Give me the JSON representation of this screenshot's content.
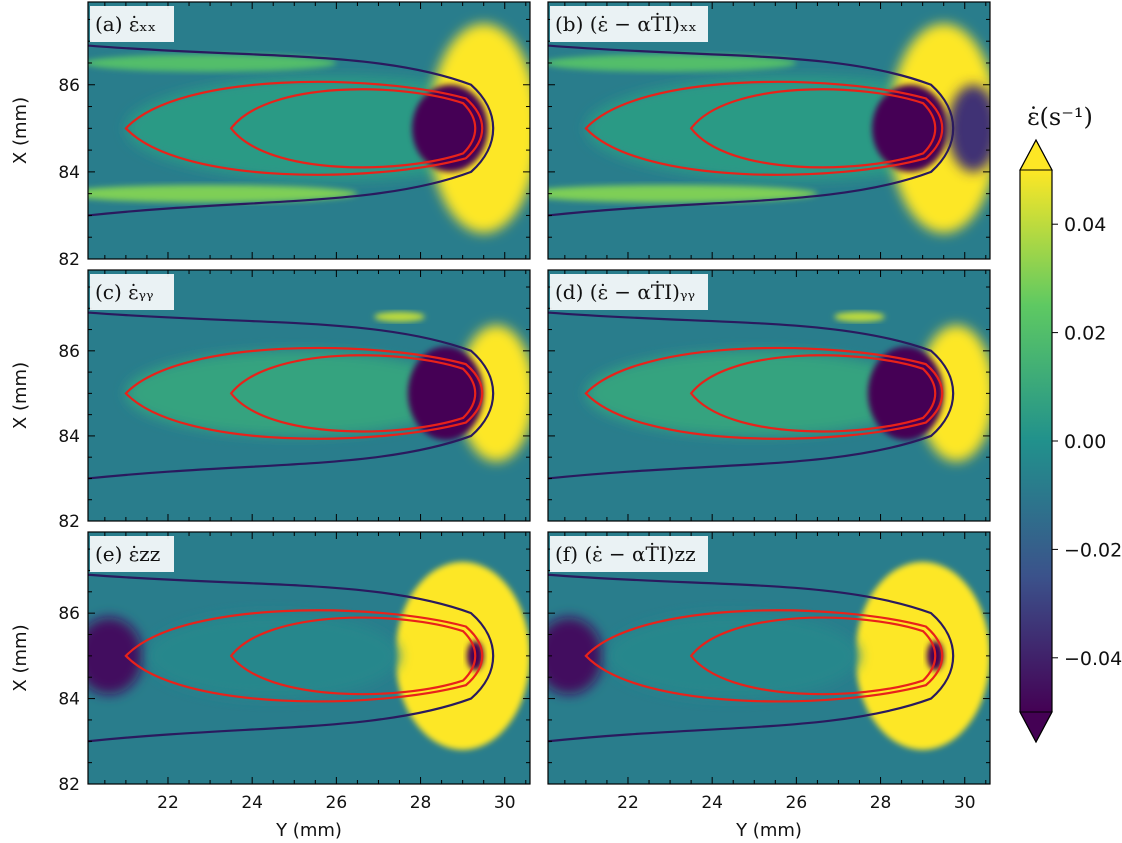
{
  "chart_data": {
    "type": "heatmap",
    "xlabel": "Y (mm)",
    "ylabel": "X (mm)",
    "xlim": [
      20.1,
      30.6
    ],
    "ylim": [
      82,
      87.9
    ],
    "x_ticks": [
      "22",
      "24",
      "26",
      "28",
      "30"
    ],
    "y_ticks": [
      "82",
      "84",
      "86"
    ],
    "colorbar": {
      "label": "ε̇(s⁻¹)",
      "range": [
        -0.05,
        0.05
      ],
      "ticks": [
        "0.04",
        "0.02",
        "0.00",
        "−0.02",
        "−0.04"
      ],
      "tick_values": [
        0.04,
        0.02,
        0.0,
        -0.02,
        -0.04
      ],
      "colormap": [
        "#440154",
        "#3b528b",
        "#21918c",
        "#5ec962",
        "#fde725"
      ],
      "extend": "both"
    },
    "panels": [
      {
        "label": "(a) ε̇ₓₓ",
        "component": "xx",
        "projected": false
      },
      {
        "label": "(b) (ε̇ − αṪI)ₓₓ",
        "component": "xx",
        "projected": true
      },
      {
        "label": "(c) ε̇ᵧᵧ",
        "component": "yy",
        "projected": false
      },
      {
        "label": "(d) (ε̇ − αṪI)ᵧᵧ",
        "component": "yy",
        "projected": true
      },
      {
        "label": "(e) ε̇zz",
        "component": "zz",
        "projected": false
      },
      {
        "label": "(f) (ε̇ − αṪI)zz",
        "component": "zz",
        "projected": true
      }
    ],
    "melt_pool_contours": {
      "color": "#e8221a",
      "outer": {
        "tip_y": 21.0,
        "front_y": 29.5,
        "center_x": 85.0,
        "half_width": 1.25
      },
      "inner": {
        "tip_y": 23.5,
        "front_y": 29.3,
        "center_x": 85.0,
        "half_width": 1.05
      }
    },
    "zero_contour_color": "#2a1a5e"
  }
}
